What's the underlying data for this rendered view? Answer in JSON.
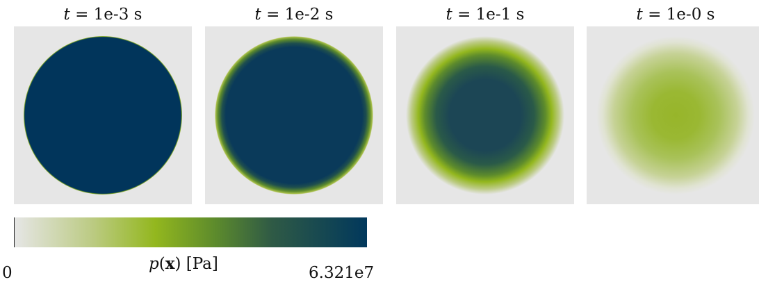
{
  "panels": [
    {
      "title_var": "t",
      "title_rest": " = 1e-3 s",
      "colormap_level": 1.0
    },
    {
      "title_var": "t",
      "title_rest": " = 1e-2 s",
      "colormap_level": 0.95
    },
    {
      "title_var": "t",
      "title_rest": " = 1e-1 s",
      "colormap_level": 0.8
    },
    {
      "title_var": "t",
      "title_rest": " = 1e-0 s",
      "colormap_level": 0.4
    }
  ],
  "colorbar": {
    "min_label": "0",
    "max_label": "6.321e7",
    "title_var": "p",
    "title_open": "(",
    "title_bold": "x",
    "title_close": ")",
    "title_unit": " [Pa]",
    "colors": [
      "#e6e6e6",
      "#bccb84",
      "#93b71e",
      "#5d8b2c",
      "#2f5a45",
      "#01385c"
    ]
  },
  "background_color": "#e6e6e6"
}
